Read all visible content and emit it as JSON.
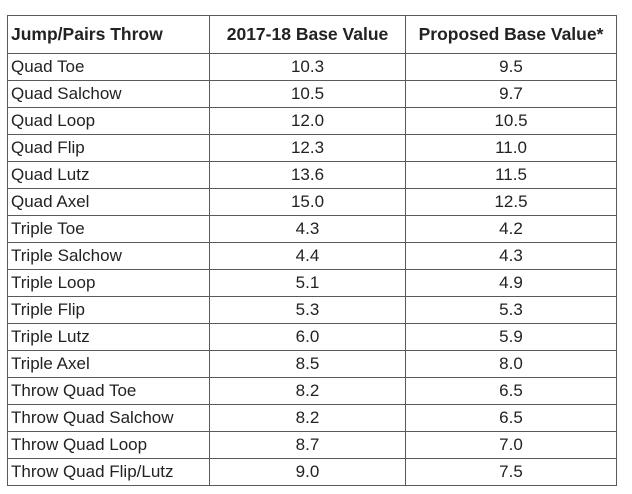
{
  "table": {
    "headers": [
      "Jump/Pairs Throw",
      "2017-18 Base Value",
      "Proposed Base Value*"
    ],
    "rows": [
      [
        "Quad Toe",
        "10.3",
        "9.5"
      ],
      [
        "Quad Salchow",
        "10.5",
        "9.7"
      ],
      [
        "Quad Loop",
        "12.0",
        "10.5"
      ],
      [
        "Quad Flip",
        "12.3",
        "11.0"
      ],
      [
        "Quad Lutz",
        "13.6",
        "11.5"
      ],
      [
        "Quad Axel",
        "15.0",
        "12.5"
      ],
      [
        "Triple Toe",
        "4.3",
        "4.2"
      ],
      [
        "Triple Salchow",
        "4.4",
        "4.3"
      ],
      [
        "Triple Loop",
        "5.1",
        "4.9"
      ],
      [
        "Triple Flip",
        "5.3",
        "5.3"
      ],
      [
        "Triple Lutz",
        "6.0",
        "5.9"
      ],
      [
        "Triple Axel",
        "8.5",
        "8.0"
      ],
      [
        "Throw Quad Toe",
        "8.2",
        "6.5"
      ],
      [
        "Throw Quad Salchow",
        "8.2",
        "6.5"
      ],
      [
        "Throw Quad Loop",
        "8.7",
        "7.0"
      ],
      [
        "Throw Quad Flip/Lutz",
        "9.0",
        "7.5"
      ]
    ]
  }
}
